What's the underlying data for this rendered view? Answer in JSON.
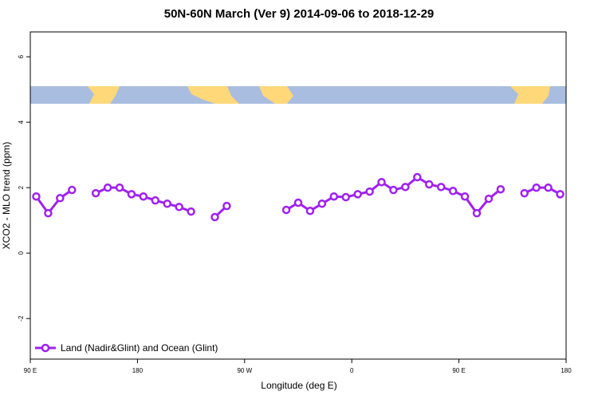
{
  "chart_data": {
    "type": "line",
    "title": "50N-60N March (Ver 9)   2014-09-06 to 2018-12-29",
    "x_label": "Longitude (deg E)",
    "y_label": "XCO2 - MLO trend (ppm)",
    "x": [
      95,
      105,
      115,
      125,
      135,
      145,
      155,
      165,
      175,
      185,
      195,
      205,
      215,
      225,
      235,
      245,
      255,
      265,
      275,
      285,
      295,
      305,
      315,
      325,
      335,
      345,
      355,
      365,
      375,
      385,
      395,
      405,
      415,
      425,
      435,
      445,
      455,
      465,
      475,
      485,
      495,
      505,
      515,
      525,
      535
    ],
    "series": [
      {
        "name": "Land (Nadir&Glint) and Ocean (Glint)",
        "color": "#a020f0",
        "values": [
          1.73,
          1.22,
          1.68,
          1.93,
          null,
          1.83,
          2.0,
          2.0,
          1.8,
          1.73,
          1.61,
          1.51,
          1.41,
          1.27,
          null,
          1.1,
          1.44,
          null,
          null,
          null,
          null,
          1.32,
          1.54,
          1.29,
          1.51,
          1.73,
          1.71,
          1.8,
          1.88,
          2.17,
          1.93,
          2.02,
          2.32,
          2.1,
          2.02,
          1.9,
          1.73,
          1.22,
          1.66,
          1.95,
          null,
          1.83,
          2.0,
          2.0,
          1.8
        ]
      }
    ],
    "xlim": [
      90,
      540
    ],
    "xticks": [
      {
        "value": 90,
        "label": "90 E"
      },
      180,
      {
        "value": 270,
        "label": "90 W"
      },
      {
        "value": 360,
        "label": "0"
      },
      {
        "value": 450,
        "label": "90 E"
      },
      {
        "value": 540,
        "label": "180"
      }
    ],
    "ylim": [
      -3.24,
      6.76
    ],
    "yticks": [
      -2,
      0,
      2,
      4,
      6
    ],
    "legend": "bottom-left"
  }
}
